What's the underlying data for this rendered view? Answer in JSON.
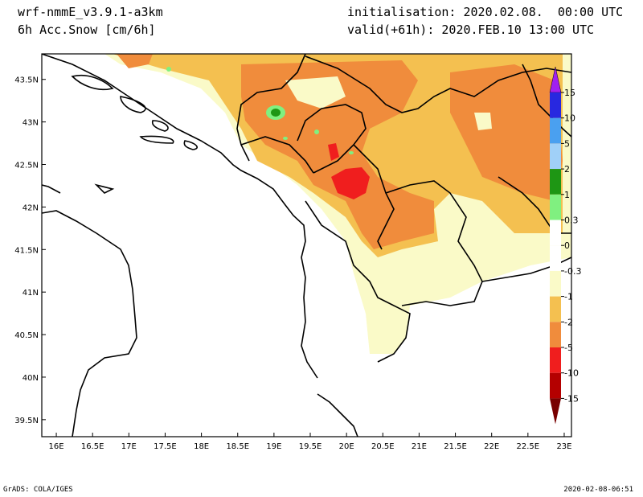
{
  "header": {
    "model": "wrf-nmmE_v3.9.1-a3km",
    "variable": "6h Acc.Snow [cm/6h]",
    "initialisation": "initialisation: 2020.02.08.  00:00 UTC",
    "valid": "valid(+61h): 2020.FEB.10 13:00 UTC"
  },
  "footer": {
    "left": "GrADS: COLA/IGES",
    "right": "2020-02-08-06:51"
  },
  "map": {
    "lon_ticks": [
      "16E",
      "16.5E",
      "17E",
      "17.5E",
      "18E",
      "18.5E",
      "19E",
      "19.5E",
      "20E",
      "20.5E",
      "21E",
      "21.5E",
      "22E",
      "22.5E",
      "23E"
    ],
    "lat_ticks": [
      "43.5N",
      "43N",
      "42.5N",
      "42N",
      "41.5N",
      "41N",
      "40.5N",
      "40N",
      "39.5N"
    ],
    "lon_range": [
      15.8,
      23.1
    ],
    "lat_range": [
      39.3,
      43.8
    ]
  },
  "colorbar": {
    "labels": [
      "15",
      "10",
      "5",
      "2",
      "1",
      "0.3",
      "0",
      "-0.3",
      "-1",
      "-2",
      "-5",
      "-10",
      "-15"
    ],
    "colors": [
      "#a020f0",
      "#2828e0",
      "#4aa0f0",
      "#a0d0f8",
      "#1e9614",
      "#80f080",
      "#ffffff",
      "#ffffff",
      "#fafac8",
      "#f4c050",
      "#f08c3c",
      "#f01e1e",
      "#b40000",
      "#780000"
    ]
  },
  "fields": {
    "light": "#fafac8",
    "yellow": "#f4c050",
    "orange": "#f08c3c",
    "red": "#f01e1e",
    "green": "#1e9614",
    "lightgreen": "#80f080"
  }
}
